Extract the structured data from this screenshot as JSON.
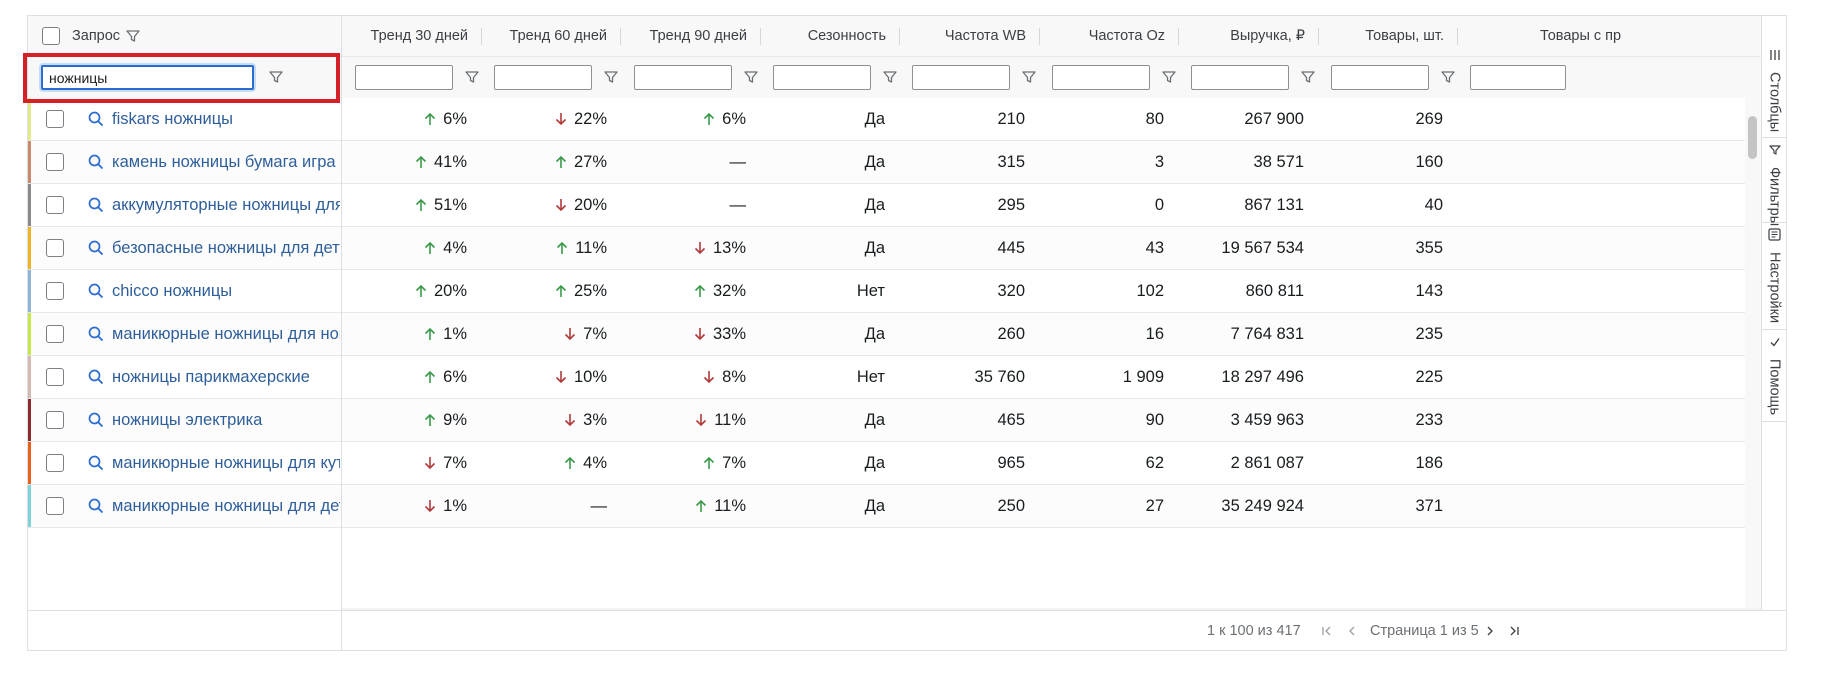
{
  "header": {
    "columns": [
      {
        "key": "query",
        "label": "Запрос"
      },
      {
        "key": "trend30",
        "label": "Тренд 30 дней"
      },
      {
        "key": "trend60",
        "label": "Тренд 60 дней"
      },
      {
        "key": "trend90",
        "label": "Тренд 90 дней"
      },
      {
        "key": "season",
        "label": "Сезонность"
      },
      {
        "key": "freqwb",
        "label": "Частота WB"
      },
      {
        "key": "freqoz",
        "label": "Частота Oz"
      },
      {
        "key": "revenue",
        "label": "Выручка, ₽"
      },
      {
        "key": "goods",
        "label": "Товары, шт."
      },
      {
        "key": "goodssales",
        "label": "Товары с пр"
      }
    ]
  },
  "filters": {
    "query_value": "ножницы",
    "others": [
      "",
      "",
      "",
      "",
      "",
      "",
      "",
      "",
      ""
    ]
  },
  "rows": [
    {
      "query": "fiskars ножницы",
      "t30": {
        "dir": "up",
        "v": "6%"
      },
      "t60": {
        "dir": "down",
        "v": "22%"
      },
      "t90": {
        "dir": "up",
        "v": "6%"
      },
      "season": "Да",
      "wb": "210",
      "oz": "80",
      "rev": "267 900",
      "goods": "269",
      "stripe": "#e3ea8c"
    },
    {
      "query": "камень ножницы бумага игра",
      "t30": {
        "dir": "up",
        "v": "41%"
      },
      "t60": {
        "dir": "up",
        "v": "27%"
      },
      "t90": {
        "dir": "none",
        "v": "—"
      },
      "season": "Да",
      "wb": "315",
      "oz": "3",
      "rev": "38 571",
      "goods": "160",
      "stripe": "#c98a6b"
    },
    {
      "query": "аккумуляторные ножницы для травы",
      "t30": {
        "dir": "up",
        "v": "51%"
      },
      "t60": {
        "dir": "down",
        "v": "20%"
      },
      "t90": {
        "dir": "none",
        "v": "—"
      },
      "season": "Да",
      "wb": "295",
      "oz": "0",
      "rev": "867 131",
      "goods": "40",
      "stripe": "#8a8a8a"
    },
    {
      "query": "безопасные ножницы для детей",
      "t30": {
        "dir": "up",
        "v": "4%"
      },
      "t60": {
        "dir": "up",
        "v": "11%"
      },
      "t90": {
        "dir": "down",
        "v": "13%"
      },
      "season": "Да",
      "wb": "445",
      "oz": "43",
      "rev": "19 567 534",
      "goods": "355",
      "stripe": "#f0b429"
    },
    {
      "query": "chicco ножницы",
      "t30": {
        "dir": "up",
        "v": "20%"
      },
      "t60": {
        "dir": "up",
        "v": "25%"
      },
      "t90": {
        "dir": "up",
        "v": "32%"
      },
      "season": "Нет",
      "wb": "320",
      "oz": "102",
      "rev": "860 811",
      "goods": "143",
      "stripe": "#8fb4d6"
    },
    {
      "query": "маникюрные ножницы для ногтей",
      "t30": {
        "dir": "up",
        "v": "1%"
      },
      "t60": {
        "dir": "down",
        "v": "7%"
      },
      "t90": {
        "dir": "down",
        "v": "33%"
      },
      "season": "Да",
      "wb": "260",
      "oz": "16",
      "rev": "7 764 831",
      "goods": "235",
      "stripe": "#c6e84a"
    },
    {
      "query": "ножницы парикмахерские",
      "t30": {
        "dir": "up",
        "v": "6%"
      },
      "t60": {
        "dir": "down",
        "v": "10%"
      },
      "t90": {
        "dir": "down",
        "v": "8%"
      },
      "season": "Нет",
      "wb": "35 760",
      "oz": "1 909",
      "rev": "18 297 496",
      "goods": "225",
      "stripe": "#d7b9b4"
    },
    {
      "query": "ножницы электрика",
      "t30": {
        "dir": "up",
        "v": "9%"
      },
      "t60": {
        "dir": "down",
        "v": "3%"
      },
      "t90": {
        "dir": "down",
        "v": "11%"
      },
      "season": "Да",
      "wb": "465",
      "oz": "90",
      "rev": "3 459 963",
      "goods": "233",
      "stripe": "#8b2a2a"
    },
    {
      "query": "маникюрные ножницы для кутикулы",
      "t30": {
        "dir": "down",
        "v": "7%"
      },
      "t60": {
        "dir": "up",
        "v": "4%"
      },
      "t90": {
        "dir": "up",
        "v": "7%"
      },
      "season": "Да",
      "wb": "965",
      "oz": "62",
      "rev": "2 861 087",
      "goods": "186",
      "stripe": "#e8601c"
    },
    {
      "query": "маникюрные ножницы для детей",
      "t30": {
        "dir": "down",
        "v": "1%"
      },
      "t60": {
        "dir": "none",
        "v": "—"
      },
      "t90": {
        "dir": "up",
        "v": "11%"
      },
      "season": "Да",
      "wb": "250",
      "oz": "27",
      "rev": "35 249 924",
      "goods": "371",
      "stripe": "#7fd3d6"
    }
  ],
  "sidebar": {
    "columns_label": "Столбцы",
    "filters_label": "Фильтры",
    "settings_label": "Настройки",
    "help_label": "Помощь"
  },
  "footer": {
    "range_text": "1 к 100 из 417",
    "page_text": "Страница 1 из 5"
  },
  "colors": {
    "up": "#3a9a4a",
    "down": "#b23a3a",
    "accent": "#2b6cd0",
    "highlight": "#d62028"
  }
}
